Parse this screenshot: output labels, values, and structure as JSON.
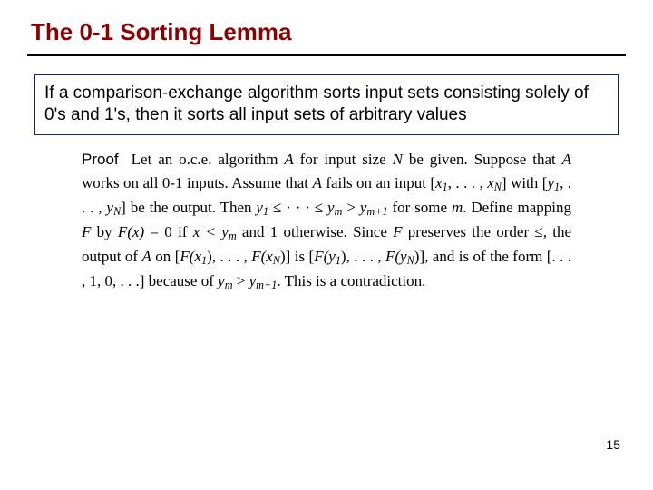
{
  "title": "The 0-1 Sorting Lemma",
  "lemma": "If a comparison-exchange algorithm sorts input sets consisting solely of 0's and 1's, then it sorts all input sets of arbitrary values",
  "proof": {
    "label": "Proof",
    "p1a": "Let an o.c.e.  algorithm ",
    "A": "A",
    "p1b": " for input size ",
    "N": "N",
    "p1c": " be given.  Suppose that ",
    "p1d": " works on all 0-1 inputs.  Assume that ",
    "p1e": " fails on an input ",
    "in_open": "[",
    "x1": "x",
    "sub1": "1",
    "comma_ell": ", . . . , ",
    "xN": "x",
    "subN": "N",
    "in_close": "]",
    "p1f": " with ",
    "y1": "y",
    "yN": "y",
    "p1g": " be the output.  Then ",
    "chain1": "y",
    "chain_le": " ≤ · · · ≤ ",
    "ym": "y",
    "subm": "m",
    "gt": " > ",
    "ym1": "y",
    "subm1": "m+1",
    "p1h": " for some ",
    "m": "m",
    "p1i": ".  Define mapping ",
    "F": "F",
    "p1j": " by ",
    "Fx": "F",
    "paren_x": "(x)",
    "eq0": " = 0",
    "p1k": " if ",
    "xlt": "x < y",
    "p1l": " and 1 otherwise.  Since ",
    "p1m": " preserves the order ≤, the output of ",
    "p1n": " on ",
    "Fx1": "F",
    "px1": "(x",
    "cb": ")",
    "FxN": "F",
    "pxN": "(x",
    "p1o": " is ",
    "Fy1": "F",
    "py1": "(y",
    "FyN": "F",
    "pyN": "(y",
    "p1p": ", and is of the form ",
    "form": "[. . . , 1, 0, . . .]",
    "p1q": " because of ",
    "p1r": ".  This is a contradiction."
  },
  "page_number": "15",
  "colors": {
    "title": "#8b0000",
    "rule": "#000000",
    "box_border": "#0a2a6b",
    "background": "#ffffff"
  }
}
